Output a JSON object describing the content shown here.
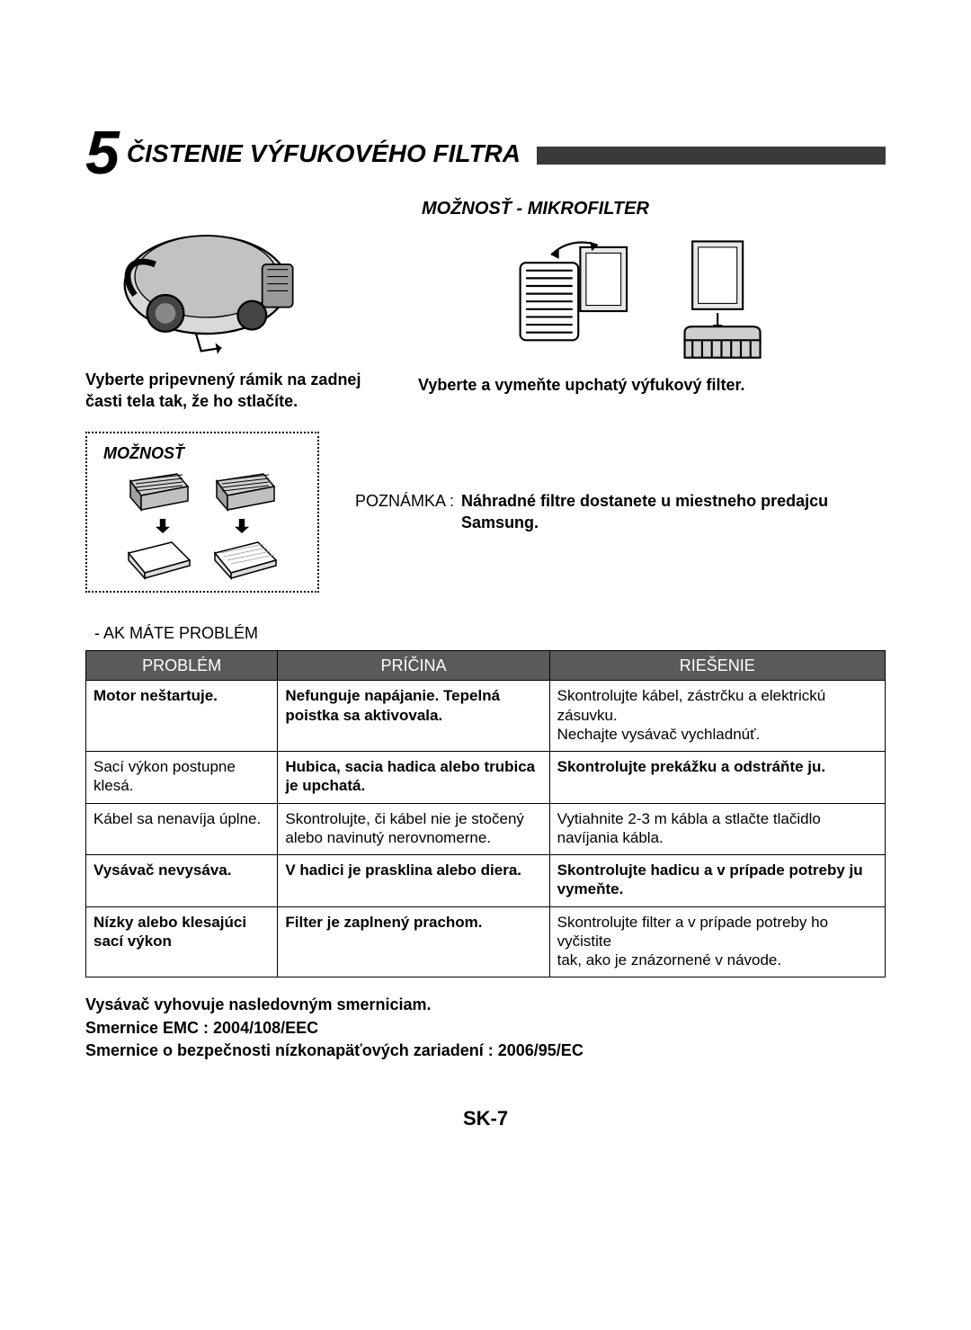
{
  "section": {
    "number": "5",
    "title": "ČISTENIE VÝFUKOVÉHO FILTRA"
  },
  "left_caption": "Vyberte pripevnený rámik na zadnej časti tela tak, že ho stlačíte.",
  "microfilter": {
    "title": "MOŽNOSŤ - MIKROFILTER",
    "caption": "Vyberte a vymeňte upchatý výfukový filter."
  },
  "option_box": {
    "title": "MOŽNOSŤ"
  },
  "note": {
    "label": "POZNÁMKA :",
    "text": "Náhradné filtre dostanete u miestneho predajcu Samsung."
  },
  "problem_heading": "- AK MÁTE PROBLÉM",
  "table": {
    "headers": [
      "PROBLÉM",
      "PRÍČINA",
      "RIEŠENIE"
    ],
    "rows": [
      {
        "p": "Motor neštartuje.",
        "c": "Nefunguje napájanie. Tepelná poistka sa aktivovala.",
        "s": "Skontrolujte kábel, zástrčku a elektrickú zásuvku.\nNechajte vysávač vychladnúť.",
        "p_bold": true,
        "c_bold": true,
        "s_bold": false
      },
      {
        "p": "Sací výkon postupne klesá.",
        "c": "Hubica, sacia hadica alebo trubica je upchatá.",
        "s": "Skontrolujte prekážku a odstráňte ju.",
        "p_bold": false,
        "c_bold": true,
        "s_bold": true
      },
      {
        "p": "Kábel sa nenavíja úplne.",
        "c": "Skontrolujte, či kábel nie je stočený alebo navinutý nerovnomerne.",
        "s": "Vytiahnite 2-3 m kábla a stlačte tlačidlo navíjania kábla.",
        "p_bold": false,
        "c_bold": false,
        "s_bold": false
      },
      {
        "p": "Vysávač nevysáva.",
        "c": "V hadici je prasklina alebo diera.",
        "s": "Skontrolujte hadicu a v prípade potreby ju vymeňte.",
        "p_bold": true,
        "c_bold": true,
        "s_bold": true
      },
      {
        "p": "Nízky alebo klesajúci sací výkon",
        "c": "Filter je zaplnený prachom.",
        "s": "Skontrolujte filter a v prípade potreby ho vyčistite\ntak, ako je znázornené v návode.",
        "p_bold": true,
        "c_bold": true,
        "s_bold": false
      }
    ]
  },
  "compliance": {
    "l1": "Vysávač vyhovuje nasledovným smerniciam.",
    "l2": "Smernice EMC : 2004/108/EEC",
    "l3": "Smernice o bezpečnosti nízkonapäťových zariadení : 2006/95/EC"
  },
  "page_num": "SK-7",
  "colors": {
    "bar": "#3a3a3a",
    "th_bg": "#5a5a5a",
    "th_fg": "#ffffff",
    "border": "#000000",
    "text": "#000000",
    "bg": "#ffffff"
  },
  "table_col_widths_pct": [
    24,
    34,
    42
  ]
}
